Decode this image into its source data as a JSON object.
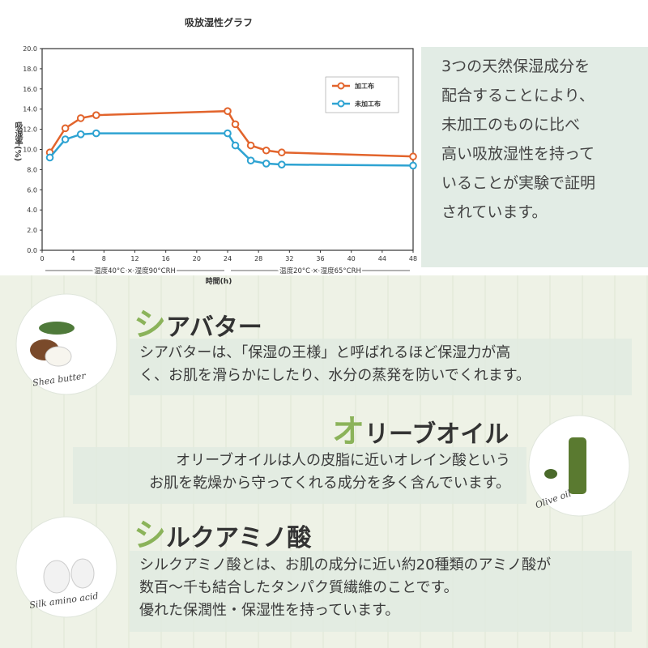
{
  "chart_data": {
    "type": "line",
    "title": "吸放湿性グラフ",
    "y_label": "吸湿率(%)",
    "x_label": "時間(h)",
    "x": [
      1,
      3,
      5,
      7,
      24,
      25,
      27,
      29,
      31,
      48
    ],
    "series": [
      {
        "name": "加工布",
        "color": "#e2642c",
        "values": [
          9.7,
          12.1,
          13.1,
          13.4,
          13.8,
          12.5,
          10.4,
          9.9,
          9.7,
          9.3
        ]
      },
      {
        "name": "未加工布",
        "color": "#2ea3d2",
        "values": [
          9.2,
          11.0,
          11.5,
          11.6,
          11.6,
          10.4,
          8.9,
          8.6,
          8.5,
          8.4
        ]
      }
    ],
    "xlim": [
      0,
      48
    ],
    "xticks": [
      0,
      4,
      8,
      12,
      16,
      20,
      24,
      28,
      32,
      36,
      40,
      44,
      48
    ],
    "ylim": [
      0,
      20
    ],
    "yticks": [
      {
        "value": 0,
        "label": "0.0"
      },
      {
        "value": 2,
        "label": "2.0"
      },
      {
        "value": 4,
        "label": "4.0"
      },
      {
        "value": 6,
        "label": "6.0"
      },
      {
        "value": 8,
        "label": "8.0"
      },
      {
        "value": 10,
        "label": "10.0"
      },
      {
        "value": 12,
        "label": "12.0"
      },
      {
        "value": 14,
        "label": "14.0"
      },
      {
        "value": 16,
        "label": "16.0"
      },
      {
        "value": 18,
        "label": "18.0"
      },
      {
        "value": 20,
        "label": "20.0"
      }
    ],
    "annotations": [
      "温度40°C × 湿度90°CRH",
      "温度20°C × 湿度65°CRH"
    ],
    "legend": "upper right"
  },
  "intro": [
    "3つの天然保湿成分を",
    "配合することにより、",
    "未加工のものに比べ",
    "高い吸放湿性を持って",
    "いることが実験で証明",
    "されています。"
  ],
  "sections": [
    {
      "heading": "シアバター",
      "image_label": "Shea butter",
      "lines": [
        "シアバターは、「保湿の王様」と呼ばれるほど保湿力が高",
        "く、お肌を滑らかにしたり、水分の蒸発を防いでくれます。"
      ]
    },
    {
      "heading": "オリーブオイル",
      "image_label": "Olive oil",
      "lines": [
        "オリーブオイルは人の皮脂に近いオレイン酸という",
        "お肌を乾燥から守ってくれる成分を多く含んでいます。"
      ]
    },
    {
      "heading": "シルクアミノ酸",
      "image_label": "Silk amino acid",
      "lines": [
        "シルクアミノ酸とは、お肌の成分に近い約20種類のアミノ酸が",
        "数百〜千も結合したタンパク質繊維のことです。",
        "優れた保潤性・保湿性を持っています。"
      ]
    }
  ]
}
